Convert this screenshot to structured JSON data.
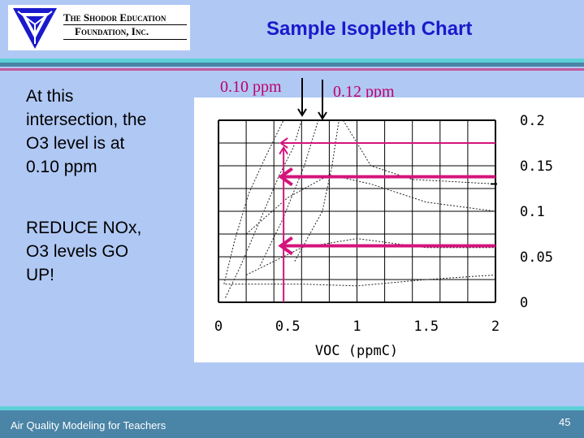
{
  "header": {
    "logo_line1": "The Shodor Education",
    "logo_line2": "Foundation, Inc.",
    "title": "Sample Isopleth Chart"
  },
  "body": {
    "text1_lines": [
      "At this",
      "intersection, the",
      "O3 level is at",
      "0.10 ppm"
    ],
    "text2_lines": [
      "REDUCE NOx,",
      "O3 levels GO",
      "UP!"
    ]
  },
  "annotations": {
    "label_010": "0.10 ppm",
    "label_012": "0.12 ppm",
    "arrow_color": "#d4147c",
    "label_color": "#c0006a"
  },
  "chart_data": {
    "type": "line",
    "xlabel": "VOC (ppmC)",
    "ylabel": "",
    "xlim": [
      0,
      2
    ],
    "ylim": [
      0,
      0.2
    ],
    "x_tick_labels": [
      "0",
      "0.5",
      "1",
      "1.5",
      "2"
    ],
    "y_tick_labels": [
      "0",
      "0.05",
      "0.1",
      "0.15",
      "0.2"
    ],
    "grid": true,
    "isopleths": [
      {
        "points": [
          [
            0.04,
            0.02
          ],
          [
            0.12,
            0.07
          ],
          [
            0.22,
            0.12
          ],
          [
            0.34,
            0.16
          ],
          [
            0.47,
            0.2
          ]
        ]
      },
      {
        "points": [
          [
            0.05,
            0.005
          ],
          [
            0.16,
            0.04
          ],
          [
            0.3,
            0.09
          ],
          [
            0.44,
            0.14
          ],
          [
            0.54,
            0.17
          ],
          [
            0.6,
            0.2
          ]
        ]
      },
      {
        "points": [
          [
            0.3,
            0.04
          ],
          [
            0.46,
            0.09
          ],
          [
            0.62,
            0.15
          ],
          [
            0.72,
            0.2
          ]
        ]
      },
      {
        "points": [
          [
            0.55,
            0.045
          ],
          [
            0.75,
            0.1
          ],
          [
            0.82,
            0.15
          ],
          [
            0.87,
            0.2
          ]
        ]
      },
      {
        "points": [
          [
            0.2,
            0.075
          ],
          [
            0.5,
            0.115
          ],
          [
            0.8,
            0.14
          ],
          [
            1.1,
            0.13
          ],
          [
            1.5,
            0.11
          ],
          [
            2.0,
            0.1
          ]
        ]
      },
      {
        "points": [
          [
            0.2,
            0.03
          ],
          [
            0.6,
            0.06
          ],
          [
            1.0,
            0.07
          ],
          [
            1.5,
            0.06
          ],
          [
            2.0,
            0.06
          ]
        ]
      },
      {
        "points": [
          [
            0.05,
            0.02
          ],
          [
            0.6,
            0.02
          ],
          [
            1.0,
            0.018
          ],
          [
            1.5,
            0.025
          ],
          [
            2.0,
            0.03
          ]
        ]
      },
      {
        "points": [
          [
            0.9,
            0.2
          ],
          [
            1.1,
            0.15
          ],
          [
            1.4,
            0.135
          ],
          [
            2.0,
            0.13
          ]
        ]
      }
    ],
    "arrows": [
      {
        "from": [
          2.0,
          0.175
        ],
        "to": [
          0.45,
          0.175
        ],
        "label": ""
      },
      {
        "from": [
          2.0,
          0.138
        ],
        "to": [
          0.45,
          0.138
        ],
        "label": ""
      },
      {
        "from": [
          2.0,
          0.062
        ],
        "to": [
          0.45,
          0.062
        ],
        "label": ""
      }
    ],
    "vertical_marker": {
      "x": 0.47,
      "y_from": 0.0,
      "y_to": 0.17
    }
  },
  "footer": {
    "course": "Air Quality Modeling for Teachers",
    "page": "45"
  }
}
